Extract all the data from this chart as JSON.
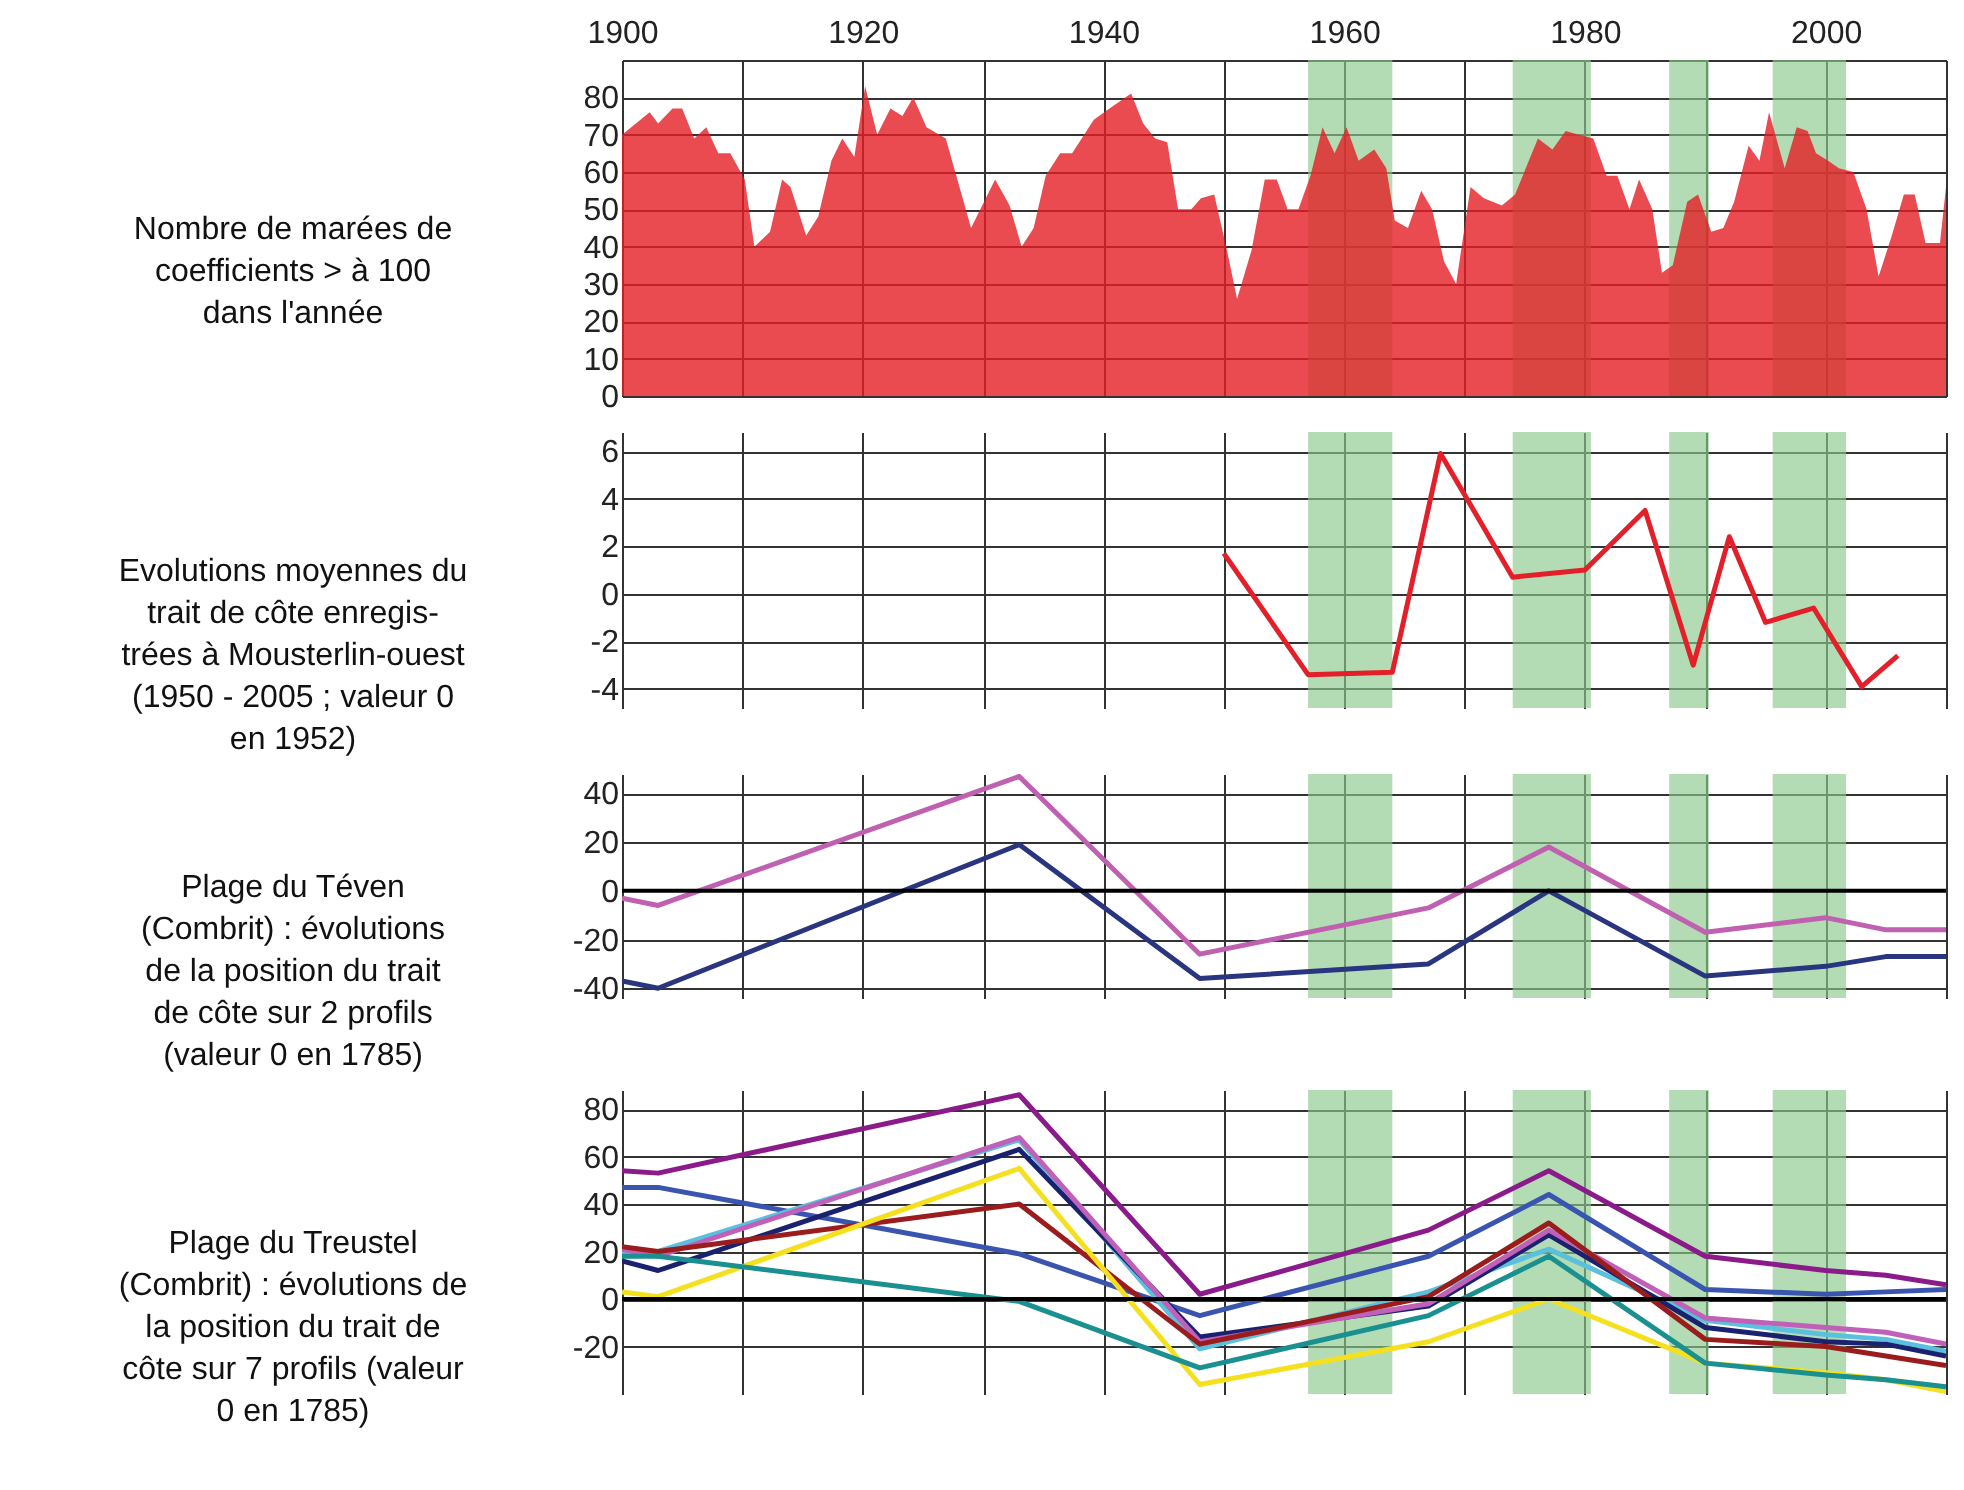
{
  "chart_data": [
    {
      "type": "area",
      "ylabel": "Nombre de marées de\ncoefficients  > à 100\ndans l'année",
      "xlim": [
        1900,
        2010
      ],
      "xticks": [
        1900,
        {
          "value": 1910,
          "label": null
        },
        1920,
        {
          "value": 1930,
          "label": null
        },
        1940,
        {
          "value": 1950,
          "label": null
        },
        1960,
        {
          "value": 1970,
          "label": null
        },
        1980,
        {
          "value": 1990,
          "label": null
        },
        2000,
        {
          "value": 2010,
          "label": null
        }
      ],
      "ylim": [
        0,
        90
      ],
      "yticks": [
        0,
        10,
        20,
        30,
        40,
        50,
        60,
        70,
        80,
        {
          "value": 90,
          "label": null
        }
      ],
      "grid": true,
      "bands": [
        {
          "axis": "x",
          "from": 1957,
          "to": 1964,
          "color": "#8cc98c"
        },
        {
          "axis": "x",
          "from": 1974,
          "to": 1980.5,
          "color": "#8cc98c"
        },
        {
          "axis": "x",
          "from": 1987,
          "to": 1990.3,
          "color": "#8cc98c"
        },
        {
          "axis": "x",
          "from": 1995.6,
          "to": 2001.7,
          "color": "#8cc98c"
        }
      ],
      "series": [
        {
          "color": "#e31e24",
          "x": [
            1900,
            1902.3,
            1903,
            1904.2,
            1905,
            1906,
            1907,
            1908,
            1909,
            1910.2,
            1911,
            1912.3,
            1913.3,
            1914,
            1915.3,
            1916.3,
            1917.4,
            1918.3,
            1919.3,
            1920.2,
            1921.2,
            1922.3,
            1923.3,
            1924.2,
            1925.3,
            1926.9,
            1929,
            1931,
            1932.2,
            1933.2,
            1934.2,
            1935.2,
            1936.4,
            1937.4,
            1939.2,
            1940.5,
            1942.3,
            1943.3,
            1944.3,
            1945.3,
            1946.2,
            1947.3,
            1948.1,
            1949.2,
            1950.2,
            1951.1,
            1952.3,
            1953.4,
            1954.4,
            1955.3,
            1956.2,
            1957.2,
            1958.2,
            1959.2,
            1960.2,
            1961.2,
            1962.5,
            1963.5,
            1964.2,
            1965.3,
            1966.4,
            1967.3,
            1968.3,
            1969.3,
            1970.5,
            1971.6,
            1973.1,
            1974.2,
            1976.1,
            1977.3,
            1978.4,
            1979.5,
            1980.7,
            1981.8,
            1982.7,
            1983.7,
            1984.5,
            1985.6,
            1986.4,
            1987.3,
            1988.5,
            1989.4,
            1990.5,
            1991.5,
            1992.4,
            1993.6,
            1994.5,
            1995.3,
            1996.6,
            1997.6,
            1998.5,
            1999.2,
            2000.2,
            2001.1,
            2002.3,
            2003.4,
            2004.4,
            2005.5,
            2006.5,
            2007.4,
            2008.3,
            2009.5,
            2010
          ],
          "values": [
            70,
            76,
            73,
            77,
            77,
            69,
            72,
            65,
            65,
            58,
            40,
            44,
            58,
            56,
            43,
            48,
            63,
            69,
            64,
            83,
            70,
            77,
            75,
            80,
            72,
            69,
            45,
            58,
            51,
            40,
            45,
            59,
            65,
            65,
            74,
            77,
            81,
            73,
            69,
            68,
            50,
            50,
            53,
            54,
            40,
            26,
            39,
            58,
            58,
            50,
            50,
            59,
            72,
            65,
            72,
            63,
            66,
            61,
            47,
            45,
            55,
            50,
            36,
            30,
            56,
            53,
            51,
            54,
            69,
            66,
            71,
            70,
            69,
            59,
            59,
            50,
            58,
            50,
            33,
            35,
            52,
            54,
            44,
            45,
            52,
            67,
            63,
            76,
            61,
            72,
            71,
            65,
            63,
            61,
            60,
            50,
            32,
            43,
            54,
            54,
            41,
            41,
            56
          ]
        }
      ]
    },
    {
      "type": "line",
      "ylabel": "Evolutions moyennes du\ntrait de côte enregis-\ntrées à Mousterlin-ouest\n(1950 - 2005 ;  valeur 0\nen 1952)",
      "xlim": [
        1900,
        2010
      ],
      "xticks": [
        1900,
        1910,
        1920,
        1930,
        1940,
        1950,
        1960,
        1970,
        1980,
        1990,
        2000,
        2010
      ],
      "ylim": [
        -4.8,
        6.8
      ],
      "yticks": [
        -4,
        -2,
        0,
        2,
        4,
        6
      ],
      "grid": true,
      "tick_labels": "y",
      "bands": [
        {
          "axis": "x",
          "from": 1957,
          "to": 1964,
          "color": "#8cc98c"
        },
        {
          "axis": "x",
          "from": 1974,
          "to": 1980.5,
          "color": "#8cc98c"
        },
        {
          "axis": "x",
          "from": 1987,
          "to": 1990.3,
          "color": "#8cc98c"
        },
        {
          "axis": "x",
          "from": 1995.6,
          "to": 2001.7,
          "color": "#8cc98c"
        }
      ],
      "series": [
        {
          "color": "#e3202a",
          "x": [
            1950,
            1957,
            1964,
            1968,
            1974,
            1980,
            1985,
            1989,
            1992,
            1995,
            1999,
            2003,
            2006
          ],
          "values": [
            1.7,
            -3.4,
            -3.3,
            5.9,
            0.7,
            1.0,
            3.5,
            -3.0,
            2.4,
            -1.2,
            -0.6,
            -3.9,
            -2.6
          ]
        }
      ]
    },
    {
      "type": "line",
      "ylabel": "Plage du Téven\n(Combrit) : évolutions\nde la position du trait\nde côte sur 2 profils\n(valeur 0 en 1785)",
      "xlim": [
        1900,
        2010
      ],
      "xticks": [
        1900,
        1910,
        1920,
        1930,
        1940,
        1950,
        1960,
        1970,
        1980,
        1990,
        2000,
        2010
      ],
      "ylim": [
        -44,
        48
      ],
      "yticks": [
        -40,
        -20,
        0,
        20,
        40
      ],
      "grid": true,
      "tick_labels": "y",
      "ref_lines": [
        {
          "axis": "y",
          "value": 0,
          "color": "#000000"
        }
      ],
      "bands": [
        {
          "axis": "x",
          "from": 1957,
          "to": 1964,
          "color": "#8cc98c"
        },
        {
          "axis": "x",
          "from": 1974,
          "to": 1980.5,
          "color": "#8cc98c"
        },
        {
          "axis": "x",
          "from": 1987,
          "to": 1990.3,
          "color": "#8cc98c"
        },
        {
          "axis": "x",
          "from": 1995.6,
          "to": 2001.7,
          "color": "#8cc98c"
        }
      ],
      "x": [
        1900,
        1903,
        1933,
        1948,
        1967,
        1977,
        1990,
        2000,
        2005,
        2010
      ],
      "series": [
        {
          "color": "#c060b0",
          "values": [
            -3,
            -6,
            47,
            -26,
            -7,
            18,
            -17,
            -11,
            -16,
            -16
          ]
        },
        {
          "color": "#2a3580",
          "values": [
            -37,
            -40,
            19,
            -36,
            -30,
            0,
            -35,
            -31,
            -27,
            -27
          ]
        }
      ]
    },
    {
      "type": "line",
      "ylabel": "Plage du Treustel\n(Combrit) : évolutions de\nla position du trait de\ncôte sur 7 profils (valeur\n0 en 1785)",
      "xlim": [
        1900,
        2010
      ],
      "xticks": [
        1900,
        1910,
        1920,
        1930,
        1940,
        1950,
        1960,
        1970,
        1980,
        1990,
        2000,
        2010
      ],
      "ylim": [
        -40,
        88
      ],
      "yticks": [
        -20,
        0,
        20,
        40,
        60,
        80
      ],
      "grid": true,
      "tick_labels": "y",
      "ref_lines": [
        {
          "axis": "y",
          "value": 0,
          "color": "#000000"
        }
      ],
      "bands": [
        {
          "axis": "x",
          "from": 1957,
          "to": 1964,
          "color": "#8cc98c"
        },
        {
          "axis": "x",
          "from": 1974,
          "to": 1980.5,
          "color": "#8cc98c"
        },
        {
          "axis": "x",
          "from": 1987,
          "to": 1990.3,
          "color": "#8cc98c"
        },
        {
          "axis": "x",
          "from": 1995.6,
          "to": 2001.7,
          "color": "#8cc98c"
        }
      ],
      "x": [
        1900,
        1903,
        1933,
        1948,
        1967,
        1977,
        1990,
        2000,
        2005,
        2010
      ],
      "series": [
        {
          "color": "#8b1a8b",
          "values": [
            54,
            53,
            86,
            2,
            29,
            54,
            18,
            12,
            10,
            6
          ]
        },
        {
          "color": "#3a55b0",
          "values": [
            47,
            47,
            19,
            -7,
            18,
            44,
            4,
            2,
            3,
            4
          ]
        },
        {
          "color": "#5bc0de",
          "values": [
            19,
            20,
            67,
            -21,
            3,
            21,
            -9,
            -15,
            -17,
            -22
          ]
        },
        {
          "color": "#1a2270",
          "values": [
            16,
            12,
            63,
            -16,
            -3,
            27,
            -12,
            -18,
            -19,
            -24
          ]
        },
        {
          "color": "#c060b8",
          "values": [
            21,
            18,
            68,
            -18,
            -2,
            29,
            -8,
            -12,
            -14,
            -19
          ]
        },
        {
          "color": "#9b1c1c",
          "values": [
            22,
            20,
            40,
            -19,
            1,
            32,
            -17,
            -20,
            -24,
            -28
          ]
        },
        {
          "color": "#f5e020",
          "values": [
            3,
            1,
            55,
            -36,
            -18,
            0,
            -27,
            -31,
            -34,
            -39
          ]
        },
        {
          "color": "#1a9090",
          "values": [
            18,
            18,
            -1,
            -29,
            -7,
            18,
            -27,
            -32,
            -34,
            -37
          ]
        }
      ]
    }
  ]
}
